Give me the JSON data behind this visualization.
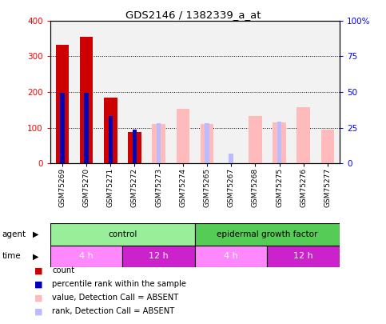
{
  "title": "GDS2146 / 1382339_a_at",
  "samples": [
    "GSM75269",
    "GSM75270",
    "GSM75271",
    "GSM75272",
    "GSM75273",
    "GSM75274",
    "GSM75265",
    "GSM75267",
    "GSM75268",
    "GSM75275",
    "GSM75276",
    "GSM75277"
  ],
  "count_values": [
    333,
    355,
    185,
    88,
    0,
    0,
    0,
    0,
    0,
    0,
    0,
    0
  ],
  "percentile_values": [
    197,
    197,
    133,
    95,
    0,
    0,
    0,
    0,
    0,
    0,
    0,
    0
  ],
  "absent_value_values": [
    0,
    0,
    0,
    0,
    110,
    153,
    110,
    0,
    133,
    115,
    158,
    95
  ],
  "absent_rank_values": [
    0,
    0,
    0,
    0,
    113,
    0,
    112,
    28,
    0,
    118,
    0,
    0
  ],
  "ylim": [
    0,
    400
  ],
  "yticks": [
    0,
    100,
    200,
    300,
    400
  ],
  "ytick_labels": [
    "0",
    "100",
    "200",
    "300",
    "400"
  ],
  "y2ticks_raw": [
    0,
    25,
    50,
    75,
    100
  ],
  "y2tick_labels": [
    "0",
    "25",
    "50",
    "75",
    "100%"
  ],
  "agent_groups": [
    {
      "label": "control",
      "start": 0,
      "end": 6,
      "color": "#99ee99"
    },
    {
      "label": "epidermal growth factor",
      "start": 6,
      "end": 12,
      "color": "#55cc55"
    }
  ],
  "time_groups": [
    {
      "label": "4 h",
      "start": 0,
      "end": 3,
      "color": "#ff88ff"
    },
    {
      "label": "12 h",
      "start": 3,
      "end": 6,
      "color": "#cc22cc"
    },
    {
      "label": "4 h",
      "start": 6,
      "end": 9,
      "color": "#ff88ff"
    },
    {
      "label": "12 h",
      "start": 9,
      "end": 12,
      "color": "#cc22cc"
    }
  ],
  "count_color": "#cc0000",
  "percentile_color": "#0000bb",
  "absent_value_color": "#ffbbbb",
  "absent_rank_color": "#bbbbff",
  "background_color": "#ffffff",
  "plot_bg_color": "#f2f2f2",
  "legend_items": [
    {
      "label": "count",
      "color": "#cc0000"
    },
    {
      "label": "percentile rank within the sample",
      "color": "#0000bb"
    },
    {
      "label": "value, Detection Call = ABSENT",
      "color": "#ffbbbb"
    },
    {
      "label": "rank, Detection Call = ABSENT",
      "color": "#bbbbff"
    }
  ]
}
